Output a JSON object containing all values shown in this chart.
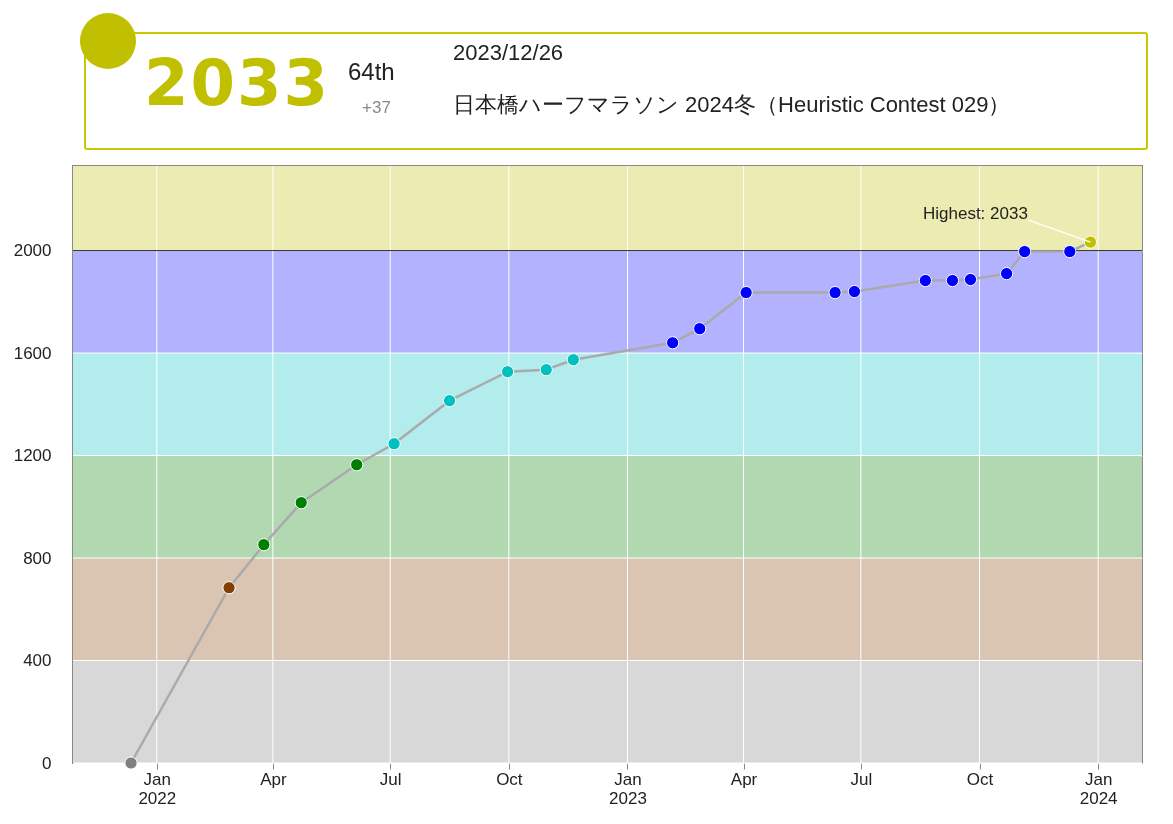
{
  "chart_data": {
    "type": "line",
    "title": "日本橋ハーフマラソン 2024冬（Heuristic Contest 029）",
    "annotations": [
      "2033",
      "64th",
      "+37",
      "2023/12/26",
      {
        "text": "Highest: 2033",
        "x": "2023-12-26",
        "y": 2033
      }
    ],
    "x": [
      "2021-12-12",
      "2022-02-26",
      "2022-03-25",
      "2022-04-23",
      "2022-06-05",
      "2022-07-04",
      "2022-08-16",
      "2022-09-30",
      "2022-10-30",
      "2022-11-20",
      "2023-02-05",
      "2023-02-26",
      "2023-04-03",
      "2023-06-11",
      "2023-06-26",
      "2023-08-20",
      "2023-09-10",
      "2023-09-24",
      "2023-10-22",
      "2023-11-05",
      "2023-12-10",
      "2023-12-26"
    ],
    "series": [
      {
        "color": "#aaaaaa",
        "colors": [
          "#808080",
          "#804000",
          "#008000",
          "#008000",
          "#008000",
          "#00c0c0",
          "#00c0c0",
          "#00c0c0",
          "#00c0c0",
          "#00c0c0",
          "#0000ff",
          "#0000ff",
          "#0000ff",
          "#0000ff",
          "#0000ff",
          "#0000ff",
          "#0000ff",
          "#0000ff",
          "#0000ff",
          "#0000ff",
          "#0000ff",
          "#c0c000"
        ],
        "values": [
          0,
          684,
          852,
          1016,
          1164,
          1246,
          1414,
          1527,
          1535,
          1574,
          1640,
          1695,
          1836,
          1836,
          1840,
          1883,
          1883,
          1887,
          1910,
          1996,
          1996,
          2033
        ]
      }
    ],
    "xlim": [
      "2021-10-28",
      "2024-02-04"
    ],
    "xticks": [
      {
        "value": "2022-01-01",
        "label": "Jan 2022"
      },
      {
        "value": "2022-04-01",
        "label": "Apr"
      },
      {
        "value": "2022-07-01",
        "label": "Jul"
      },
      {
        "value": "2022-10-01",
        "label": "Oct"
      },
      {
        "value": "2023-01-01",
        "label": "Jan 2023"
      },
      {
        "value": "2023-04-01",
        "label": "Apr"
      },
      {
        "value": "2023-07-01",
        "label": "Jul"
      },
      {
        "value": "2023-10-01",
        "label": "Oct"
      },
      {
        "value": "2024-01-01",
        "label": "Jan 2024"
      }
    ],
    "ylim": [
      0,
      2330
    ],
    "yticks": [
      0,
      400,
      800,
      1200,
      1600,
      2000
    ],
    "bands": [
      {
        "axis": "y",
        "from": 0,
        "to": 400,
        "color": "#d8d8d8"
      },
      {
        "axis": "y",
        "from": 400,
        "to": 800,
        "color": "#d9c5b2"
      },
      {
        "axis": "y",
        "from": 800,
        "to": 1200,
        "color": "#b2d8b2"
      },
      {
        "axis": "y",
        "from": 1200,
        "to": 1600,
        "color": "#b2ecec"
      },
      {
        "axis": "y",
        "from": 1600,
        "to": 2000,
        "color": "#b2b2ff"
      },
      {
        "axis": "y",
        "from": 2000,
        "to": 2330,
        "color": "#ececb2"
      }
    ],
    "ref_lines": [
      {
        "axis": "y",
        "value": 2000,
        "color": "#333333"
      }
    ],
    "grid": true,
    "marker": "circle",
    "line_style": "solid"
  }
}
